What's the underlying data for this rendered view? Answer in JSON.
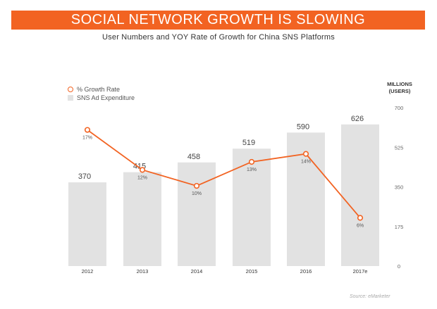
{
  "header": {
    "title": "SOCIAL NETWORK GROWTH IS SLOWING",
    "subtitle": "User Numbers and YOY Rate of Growth for China SNS Platforms"
  },
  "legend": {
    "line_label": "% Growth Rate",
    "bar_label": "SNS Ad Expenditure"
  },
  "y_axis_unit": [
    "MILLIONS",
    "(USERS)"
  ],
  "source": "Source: eMarketer",
  "colors": {
    "accent": "#f26322",
    "bar": "#e2e2e2"
  },
  "chart_data": {
    "type": "bar",
    "categories": [
      "2012",
      "2013",
      "2014",
      "2015",
      "2016",
      "2017e"
    ],
    "series": [
      {
        "name": "SNS Ad Expenditure",
        "type": "bar",
        "values": [
          370,
          415,
          458,
          519,
          590,
          626
        ],
        "labels": [
          "370",
          "415",
          "458",
          "519",
          "590",
          "626"
        ]
      },
      {
        "name": "% Growth Rate",
        "type": "line",
        "values": [
          17,
          12,
          10,
          13,
          14,
          6
        ],
        "labels": [
          "17%",
          "12%",
          "10%",
          "13%",
          "14%",
          "6%"
        ]
      }
    ],
    "ylim": [
      0,
      700
    ],
    "yticks": [
      "0",
      "175",
      "350",
      "525",
      "700"
    ],
    "ylabel": "MILLIONS (USERS)",
    "legend_position": "top-left",
    "grid": false
  }
}
